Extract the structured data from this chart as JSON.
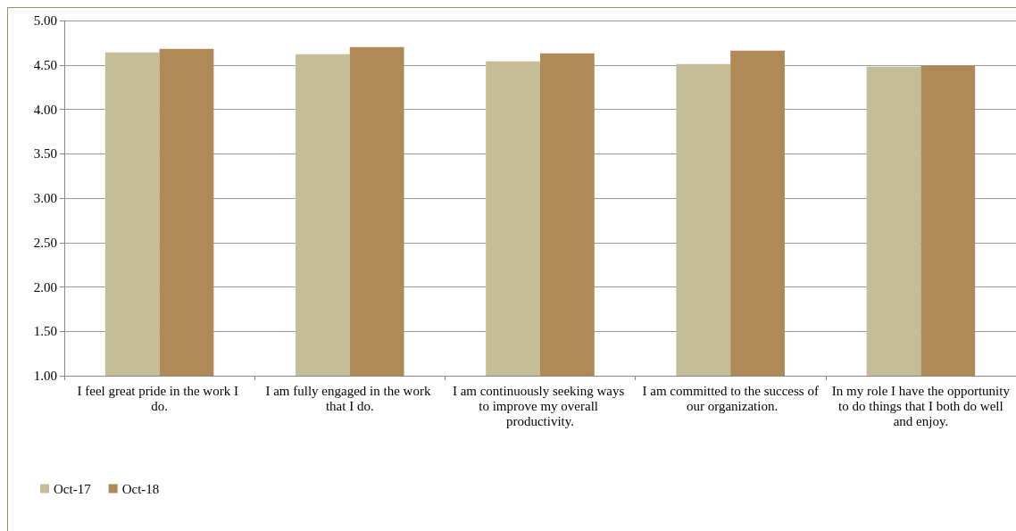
{
  "chart_data": {
    "type": "bar",
    "categories": [
      "I feel great pride in the work I do.",
      "I am fully engaged in the work that I do.",
      "I am continuously seeking ways to improve my overall productivity.",
      "I am committed to the success of our organization.",
      "In my role I have the opportunity to do things that I both do well and enjoy."
    ],
    "series": [
      {
        "name": "Oct-17",
        "color": "#c4bd97",
        "values": [
          4.64,
          4.62,
          4.54,
          4.51,
          4.48
        ]
      },
      {
        "name": "Oct-18",
        "color": "#af8a57",
        "values": [
          4.68,
          4.7,
          4.63,
          4.66,
          4.49
        ]
      }
    ],
    "ylim": [
      1,
      5
    ],
    "yticks": [
      {
        "value": 1,
        "label": "1.00"
      },
      {
        "value": 1.5,
        "label": "1.50"
      },
      {
        "value": 2,
        "label": "2.00"
      },
      {
        "value": 2.5,
        "label": "2.50"
      },
      {
        "value": 3,
        "label": "3.00"
      },
      {
        "value": 3.5,
        "label": "3.50"
      },
      {
        "value": 4,
        "label": "4.00"
      },
      {
        "value": 4.5,
        "label": "4.50"
      },
      {
        "value": 5,
        "label": "5.00"
      }
    ],
    "grid": "y",
    "legend": "bottom left"
  }
}
